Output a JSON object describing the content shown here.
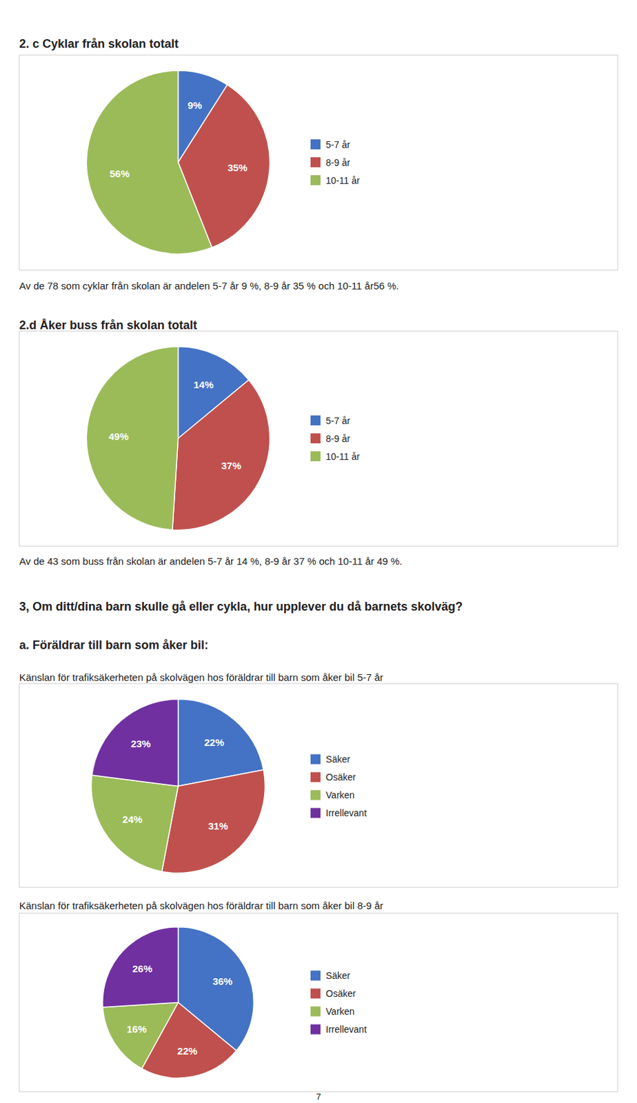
{
  "chart_data": [
    {
      "type": "pie",
      "title": "2. c Cyklar från skolan totalt",
      "categories": [
        "5-7 år",
        "8-9 år",
        "10-11 år"
      ],
      "values": [
        9,
        35,
        56
      ],
      "value_labels": [
        "9%",
        "35%",
        "56%"
      ],
      "colors": [
        "#4472C4",
        "#C0504D",
        "#9BBB59"
      ],
      "data_labels": true,
      "legend": "right",
      "annotations": [
        "Av de 78 som cyklar från skolan är andelen 5-7 år 9 %, 8-9 år 35 % och 10-11 år56 %."
      ]
    },
    {
      "type": "pie",
      "title": "2.d Åker buss från skolan totalt",
      "categories": [
        "5-7 år",
        "8-9 år",
        "10-11 år"
      ],
      "values": [
        14,
        37,
        49
      ],
      "value_labels": [
        "14%",
        "37%",
        "49%"
      ],
      "colors": [
        "#4472C4",
        "#C0504D",
        "#9BBB59"
      ],
      "data_labels": true,
      "legend": "right",
      "annotations": [
        "Av de 43 som buss från skolan är andelen 5-7 år 14 %, 8-9 år 37 % och 10-11 år 49 %."
      ]
    },
    {
      "type": "pie",
      "title": "Känslan för trafiksäkerheten på skolvägen hos föräldrar till barn som åker bil 5-7 år",
      "categories": [
        "Säker",
        "Osäker",
        "Varken",
        "Irrellevant"
      ],
      "values": [
        22,
        31,
        24,
        23
      ],
      "value_labels": [
        "22%",
        "31%",
        "24%",
        "23%"
      ],
      "colors": [
        "#4472C4",
        "#C0504D",
        "#9BBB59",
        "#7030A0"
      ],
      "data_labels": true,
      "legend": "right"
    },
    {
      "type": "pie",
      "title": "Känslan för trafiksäkerheten på skolvägen hos föräldrar till barn som åker bil 8-9 år",
      "categories": [
        "Säker",
        "Osäker",
        "Varken",
        "Irrellevant"
      ],
      "values": [
        36,
        22,
        16,
        26
      ],
      "value_labels": [
        "36%",
        "22%",
        "16%",
        "26%"
      ],
      "colors": [
        "#4472C4",
        "#C0504D",
        "#9BBB59",
        "#7030A0"
      ],
      "data_labels": true,
      "legend": "right"
    }
  ],
  "headings": [
    "3, Om ditt/dina barn skulle gå eller cykla, hur upplever du då barnets skolväg?",
    "a. Föräldrar till barn som åker bil:"
  ],
  "page_number": "7"
}
